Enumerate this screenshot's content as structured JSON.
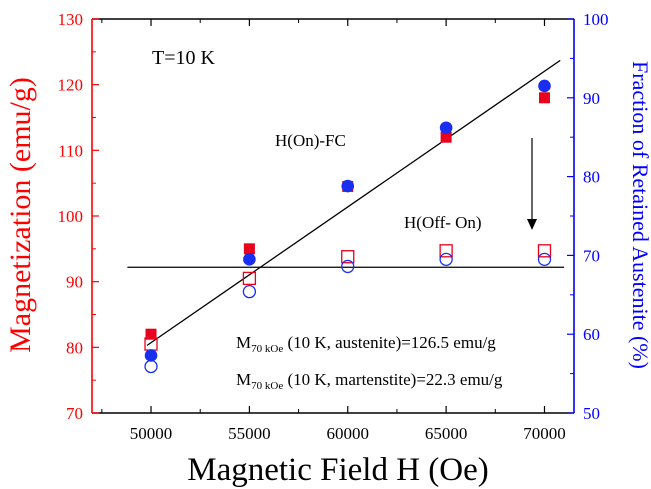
{
  "chart_data": {
    "type": "scatter",
    "title": "",
    "xlabel": "Magnetic Field H (Oe)",
    "ylabel_left": "Magnetization (emu/g)",
    "ylabel_right": "Fraction of Retained Austenite (%)",
    "xlim": [
      47000,
      71500
    ],
    "ylim_left": [
      70,
      130
    ],
    "ylim_right": [
      50,
      100
    ],
    "x_ticks": [
      50000,
      55000,
      60000,
      65000,
      70000
    ],
    "y_ticks_left": [
      70,
      80,
      90,
      100,
      110,
      120,
      130
    ],
    "y_ticks_right": [
      50,
      60,
      70,
      80,
      90,
      100
    ],
    "grid": false,
    "colors": {
      "left_axis": "#ff0000",
      "right_axis": "#0000ff",
      "marker_red": "#e8001c",
      "marker_blue": "#1a2ef0",
      "fit_line": "#000000"
    },
    "series": [
      {
        "axis": "left",
        "marker": "filled-square",
        "color": "#e8001c",
        "x": [
          50000,
          55000,
          60000,
          65000,
          70000
        ],
        "y": [
          82.0,
          95.0,
          104.5,
          112.0,
          118.0
        ]
      },
      {
        "axis": "left",
        "marker": "open-square",
        "color": "#e8001c",
        "x": [
          50000,
          55000,
          60000,
          65000,
          70000
        ],
        "y": [
          80.5,
          90.5,
          93.8,
          94.7,
          94.7
        ]
      },
      {
        "axis": "right",
        "marker": "filled-circle",
        "color": "#1a2ef0",
        "x": [
          50000,
          55000,
          60000,
          65000,
          70000
        ],
        "y": [
          57.3,
          69.5,
          78.8,
          86.2,
          91.5
        ]
      },
      {
        "axis": "right",
        "marker": "open-circle",
        "color": "#1a2ef0",
        "x": [
          50000,
          55000,
          60000,
          65000,
          70000
        ],
        "y": [
          55.9,
          65.4,
          68.6,
          69.5,
          69.5
        ]
      }
    ],
    "lines": [
      {
        "axis": "left",
        "x": [
          49800,
          70800
        ],
        "y": [
          80.3,
          123.7
        ]
      },
      {
        "axis": "left",
        "x": [
          48800,
          71000
        ],
        "y": [
          92.2,
          92.2
        ]
      }
    ],
    "annotations": {
      "temperature": "T=10 K",
      "on_label": "H(On)-FC",
      "off_label": "H(Off- On)",
      "m_austenite_main": "M",
      "m_austenite_sub": "70 kOe",
      "m_austenite_rest": " (10 K, austenite)=126.5 emu/g",
      "m_martensite_main": "M",
      "m_martensite_sub": "70 kOe",
      "m_martensite_rest": " (10 K, martenstite)=22.3 emu/g"
    }
  }
}
